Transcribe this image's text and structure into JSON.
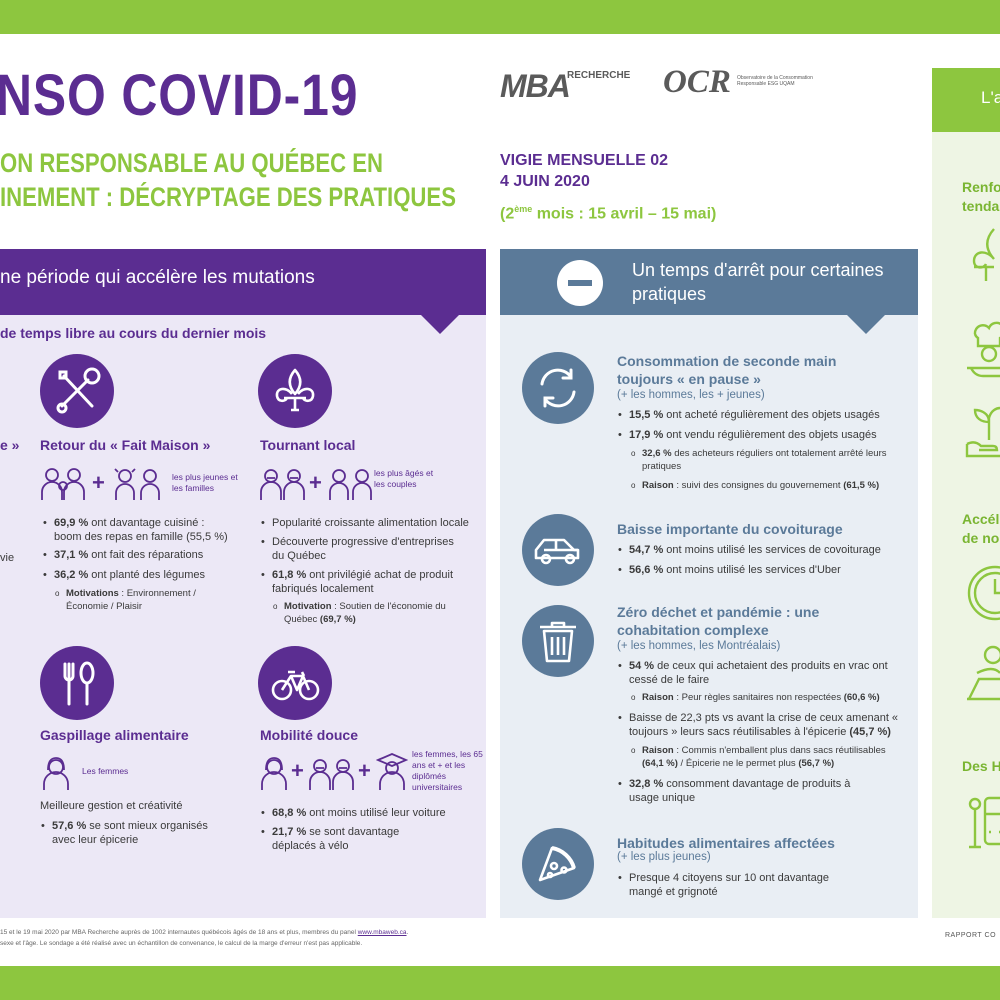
{
  "header": {
    "title": "NSO COVID-19",
    "subtitle_line1": "ON RESPONSABLE AU QUÉBEC EN",
    "subtitle_line2": "INEMENT : DÉCRYPTAGE DES PRATIQUES",
    "vigie_line1": "VIGIE MENSUELLE 02",
    "vigie_line2": "4 JUIN 2020",
    "period_prefix": "(2",
    "period_sup": "ème",
    "period_rest": " mois : 15 avril – 15 mai)"
  },
  "logos": {
    "mba": "MBA",
    "mba_sub": "RECHERCHE",
    "ocr": "OCR",
    "ocr_sub": "Observatoire de la Consommation Responsable ESG UQAM"
  },
  "left_panel": {
    "header": "ne période qui accélère les mutations",
    "subheader": "de temps libre au cours du dernier mois",
    "fragment_1": "e »",
    "fragment_2": "vie",
    "fait_maison": {
      "title": "Retour du « Fait Maison »",
      "tag": "les plus jeunes et les familles",
      "b1_bold": "69,9 %",
      "b1_rest": " ont davantage cuisiné : boom des repas en famille (55,5 %)",
      "b2_bold": "37,1 %",
      "b2_rest": " ont fait des réparations",
      "b3_bold": "36,2 %",
      "b3_rest": " ont planté des légumes",
      "s1_bold": "Motivations",
      "s1_rest": " : Environnement / Économie / Plaisir"
    },
    "tournant_local": {
      "title": "Tournant local",
      "tag": "les plus âgés et les couples",
      "b1": "Popularité croissante alimentation locale",
      "b2": "Découverte progressive d'entreprises du Québec",
      "b3_bold": "61,8 %",
      "b3_rest": " ont privilégié achat de produit fabriqués localement",
      "s1_bold": "Motivation",
      "s1_rest": " : Soutien de l'économie du Québec ",
      "s1_end": "(69,7 %)"
    },
    "gaspillage": {
      "title": "Gaspillage alimentaire",
      "tag": "Les femmes",
      "line": "Meilleure gestion et créativité",
      "b1_bold": "57,6 %",
      "b1_rest": " se sont mieux organisés avec leur épicerie"
    },
    "mobilite": {
      "title": "Mobilité douce",
      "tag": "les femmes, les 65 ans et + et les diplômés universitaires",
      "b1_bold": "68,8 %",
      "b1_rest": " ont moins utilisé leur voiture",
      "b2_bold": "21,7 %",
      "b2_rest": " se sont davantage déplacés à vélo"
    }
  },
  "right_panel": {
    "header": "Un temps d'arrêt pour certaines pratiques",
    "seconde_main": {
      "title": "Consommation de seconde main toujours « en pause »",
      "sub": "(+ les hommes, les + jeunes)",
      "b1_bold": "15,5 %",
      "b1_rest": " ont acheté régulièrement des objets usagés",
      "b2_bold": "17,9 %",
      "b2_rest": " ont vendu régulièrement des objets usagés",
      "s1_bold": "32,6 %",
      "s1_rest": " des acheteurs réguliers ont totalement arrêté leurs pratiques",
      "s2_bold": "Raison",
      "s2_rest": " : suivi des consignes du gouvernement ",
      "s2_end": "(61,5 %)"
    },
    "covoiturage": {
      "title": "Baisse importante du covoiturage",
      "b1_bold": "54,7 %",
      "b1_rest": " ont moins utilisé les services de covoiturage",
      "b2_bold": "56,6 %",
      "b2_rest": " ont moins utilisé les services d'Uber"
    },
    "zero_dechet": {
      "title": "Zéro déchet et pandémie : une cohabitation complexe",
      "sub": "(+ les hommes, les Montréalais)",
      "b1_bold": "54 %",
      "b1_rest": " de ceux qui achetaient des produits en vrac ont cessé de le faire",
      "s1_bold": "Raison",
      "s1_rest": " : Peur règles sanitaires non respectées ",
      "s1_end": "(60,6 %)",
      "b2": "Baisse de 22,3 pts vs avant la crise de ceux amenant « toujours » leurs sacs réutilisables à l'épicerie ",
      "b2_end": "(45,7 %)",
      "s2_bold": "Raison",
      "s2_rest": " : Commis n'emballent plus dans sacs réutilisables ",
      "s2_mid": "(64,1 %)",
      "s2_rest2": " / Épicerie ne le permet plus ",
      "s2_end": "(56,7 %)",
      "b3_bold": "32,8 %",
      "b3_rest": " consomment davantage de produits à usage unique"
    },
    "habitudes": {
      "title": "Habitudes alimentaires affectées",
      "sub": "(+ les plus jeunes)",
      "b1": "Presque 4 citoyens sur 10 ont davantage mangé et grignoté"
    }
  },
  "green_panel": {
    "header": "L'a",
    "label1_line1": "Renfo",
    "label1_line2": "tenda",
    "label2_line1": "Accél",
    "label2_line2": "de no",
    "label3": "Des H"
  },
  "footer": {
    "line1_a": "15 et le 19 mai 2020 par MBA Recherche auprès de 1002 internautes québécois âgés de 18 ans et plus, membres du panel ",
    "line1_link": "www.mbaweb.ca",
    "line1_b": ".",
    "line2": "sexe et l'âge. Le sondage a été réalisé avec un échantillon de convenance, le calcul de la marge d'erreur n'est pas applicable.",
    "rapport": "RAPPORT CO"
  },
  "colors": {
    "purple": "#5b2d91",
    "green": "#8dc63f",
    "slate_blue": "#5b7a99"
  }
}
